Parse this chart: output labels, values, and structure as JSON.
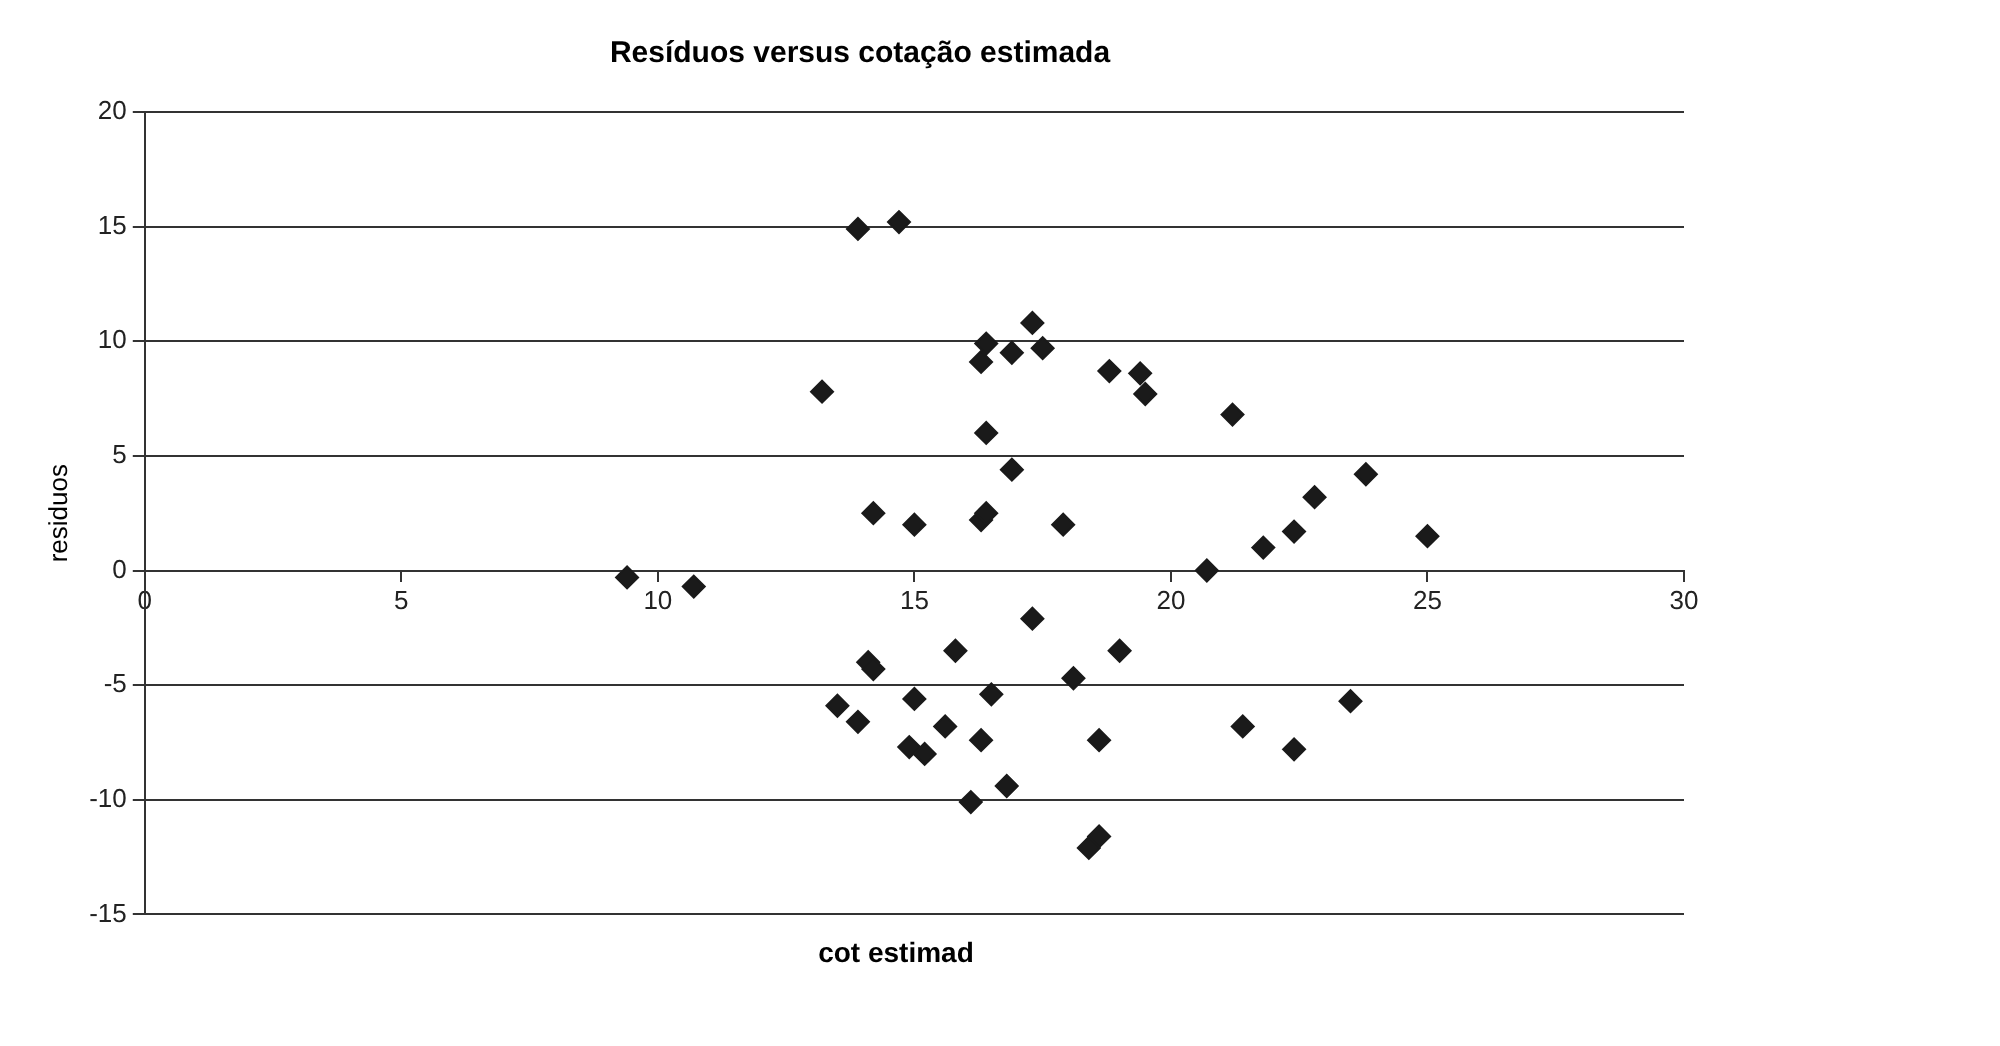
{
  "chart_data": {
    "type": "scatter",
    "title": "Resíduos versus cotação estimada",
    "xlabel": "cot estimad",
    "ylabel": "residuos",
    "xlim": [
      0,
      30
    ],
    "xticks": [
      0,
      5,
      10,
      15,
      20,
      25,
      30
    ],
    "ylim": [
      -15,
      20
    ],
    "yticks": [
      -15,
      -10,
      -5,
      0,
      5,
      10,
      15,
      20
    ],
    "grid": "y",
    "legend": false,
    "marker": "diamond",
    "series": [
      {
        "color": "#1a1a1a",
        "x": [
          9.4,
          10.7,
          13.9,
          14.7,
          17.3,
          16.4,
          16.9,
          17.5,
          16.3,
          18.8,
          19.4,
          19.5,
          13.2,
          16.4,
          16.9,
          14.2,
          15.0,
          16.3,
          16.4,
          17.9,
          21.2,
          20.7,
          21.8,
          22.4,
          22.8,
          23.8,
          25.0,
          17.3,
          15.8,
          19.0,
          14.1,
          14.2,
          18.1,
          15.0,
          16.5,
          13.5,
          13.9,
          15.6,
          16.3,
          18.6,
          14.9,
          15.2,
          16.8,
          16.1,
          18.6,
          18.4,
          21.4,
          22.4,
          23.5
        ],
        "values": [
          -0.3,
          -0.7,
          14.9,
          15.2,
          10.8,
          9.9,
          9.5,
          9.7,
          9.1,
          8.7,
          8.6,
          7.7,
          7.8,
          6.0,
          4.4,
          2.5,
          2.0,
          2.2,
          2.5,
          2.0,
          6.8,
          0.0,
          1.0,
          1.7,
          3.2,
          4.2,
          1.5,
          -2.1,
          -3.5,
          -3.5,
          -4.0,
          -4.3,
          -4.7,
          -5.6,
          -5.4,
          -5.9,
          -6.6,
          -6.8,
          -7.4,
          -7.4,
          -7.7,
          -8.0,
          -9.4,
          -10.1,
          -11.6,
          -12.1,
          -6.8,
          -7.8,
          -5.7
        ]
      }
    ]
  }
}
